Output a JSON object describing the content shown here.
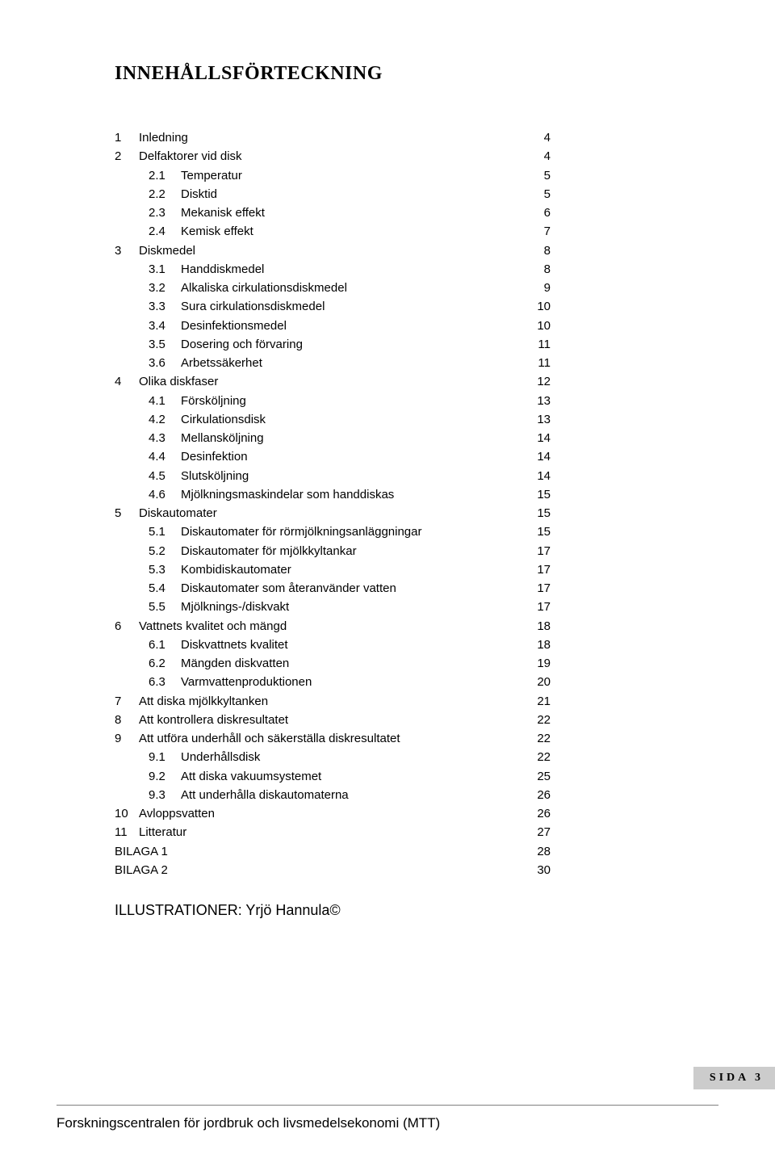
{
  "title": "INNEHÅLLSFÖRTECKNING",
  "toc": [
    {
      "level": 0,
      "num": "1",
      "label": "Inledning",
      "page": "4"
    },
    {
      "level": 0,
      "num": "2",
      "label": "Delfaktorer vid disk",
      "page": "4"
    },
    {
      "level": 1,
      "num": "2.1",
      "label": "Temperatur",
      "page": "5"
    },
    {
      "level": 1,
      "num": "2.2",
      "label": "Disktid",
      "page": "5"
    },
    {
      "level": 1,
      "num": "2.3",
      "label": "Mekanisk effekt",
      "page": "6"
    },
    {
      "level": 1,
      "num": "2.4",
      "label": "Kemisk effekt",
      "page": "7"
    },
    {
      "level": 0,
      "num": "3",
      "label": "Diskmedel",
      "page": "8"
    },
    {
      "level": 1,
      "num": "3.1",
      "label": "Handdiskmedel",
      "page": "8"
    },
    {
      "level": 1,
      "num": "3.2",
      "label": "Alkaliska cirkulationsdiskmedel",
      "page": "9"
    },
    {
      "level": 1,
      "num": "3.3",
      "label": "Sura cirkulationsdiskmedel",
      "page": "10"
    },
    {
      "level": 1,
      "num": "3.4",
      "label": "Desinfektionsmedel",
      "page": "10"
    },
    {
      "level": 1,
      "num": "3.5",
      "label": "Dosering och förvaring",
      "page": "11"
    },
    {
      "level": 1,
      "num": "3.6",
      "label": "Arbetssäkerhet",
      "page": "11"
    },
    {
      "level": 0,
      "num": "4",
      "label": "Olika diskfaser",
      "page": "12"
    },
    {
      "level": 1,
      "num": "4.1",
      "label": "Försköljning",
      "page": "13"
    },
    {
      "level": 1,
      "num": "4.2",
      "label": "Cirkulationsdisk",
      "page": "13"
    },
    {
      "level": 1,
      "num": "4.3",
      "label": "Mellansköljning",
      "page": "14"
    },
    {
      "level": 1,
      "num": "4.4",
      "label": "Desinfektion",
      "page": "14"
    },
    {
      "level": 1,
      "num": "4.5",
      "label": "Slutsköljning",
      "page": "14"
    },
    {
      "level": 1,
      "num": "4.6",
      "label": "Mjölkningsmaskindelar som handdiskas",
      "page": "15"
    },
    {
      "level": 0,
      "num": "5",
      "label": "Diskautomater",
      "page": "15"
    },
    {
      "level": 1,
      "num": "5.1",
      "label": "Diskautomater för rörmjölkningsanläggningar",
      "page": "15"
    },
    {
      "level": 1,
      "num": "5.2",
      "label": "Diskautomater för mjölkkyltankar",
      "page": "17"
    },
    {
      "level": 1,
      "num": "5.3",
      "label": "Kombidiskautomater",
      "page": "17"
    },
    {
      "level": 1,
      "num": "5.4",
      "label": "Diskautomater som återanvänder vatten",
      "page": "17"
    },
    {
      "level": 1,
      "num": "5.5",
      "label": "Mjölknings-/diskvakt",
      "page": "17"
    },
    {
      "level": 0,
      "num": "6",
      "label": "Vattnets kvalitet och mängd",
      "page": "18"
    },
    {
      "level": 1,
      "num": "6.1",
      "label": "Diskvattnets kvalitet",
      "page": "18"
    },
    {
      "level": 1,
      "num": "6.2",
      "label": "Mängden diskvatten",
      "page": "19"
    },
    {
      "level": 1,
      "num": "6.3",
      "label": "Varmvattenproduktionen",
      "page": "20"
    },
    {
      "level": 0,
      "num": "7",
      "label": "Att diska mjölkkyltanken",
      "page": "21"
    },
    {
      "level": 0,
      "num": "8",
      "label": "Att kontrollera diskresultatet",
      "page": "22"
    },
    {
      "level": 0,
      "num": "9",
      "label": "Att utföra underhåll och säkerställa diskresultatet",
      "page": "22"
    },
    {
      "level": 1,
      "num": "9.1",
      "label": "Underhållsdisk",
      "page": "22"
    },
    {
      "level": 1,
      "num": "9.2",
      "label": "Att diska vakuumsystemet",
      "page": "25"
    },
    {
      "level": 1,
      "num": "9.3",
      "label": "Att underhålla diskautomaterna",
      "page": "26"
    },
    {
      "level": 0,
      "num": "10",
      "label": "Avloppsvatten",
      "page": "26"
    },
    {
      "level": 0,
      "num": "11",
      "label": "Litteratur",
      "page": "27"
    },
    {
      "level": 0,
      "num": "",
      "label": "BILAGA 1",
      "page": "28"
    },
    {
      "level": 0,
      "num": "",
      "label": "BILAGA 2",
      "page": "30"
    }
  ],
  "illustrator_label": "ILLUSTRATIONER: Yrjö Hannula©",
  "sida_label": "SIDA 3",
  "footer_text": "Forskningscentralen för jordbruk och livsmedelsekonomi (MTT)"
}
